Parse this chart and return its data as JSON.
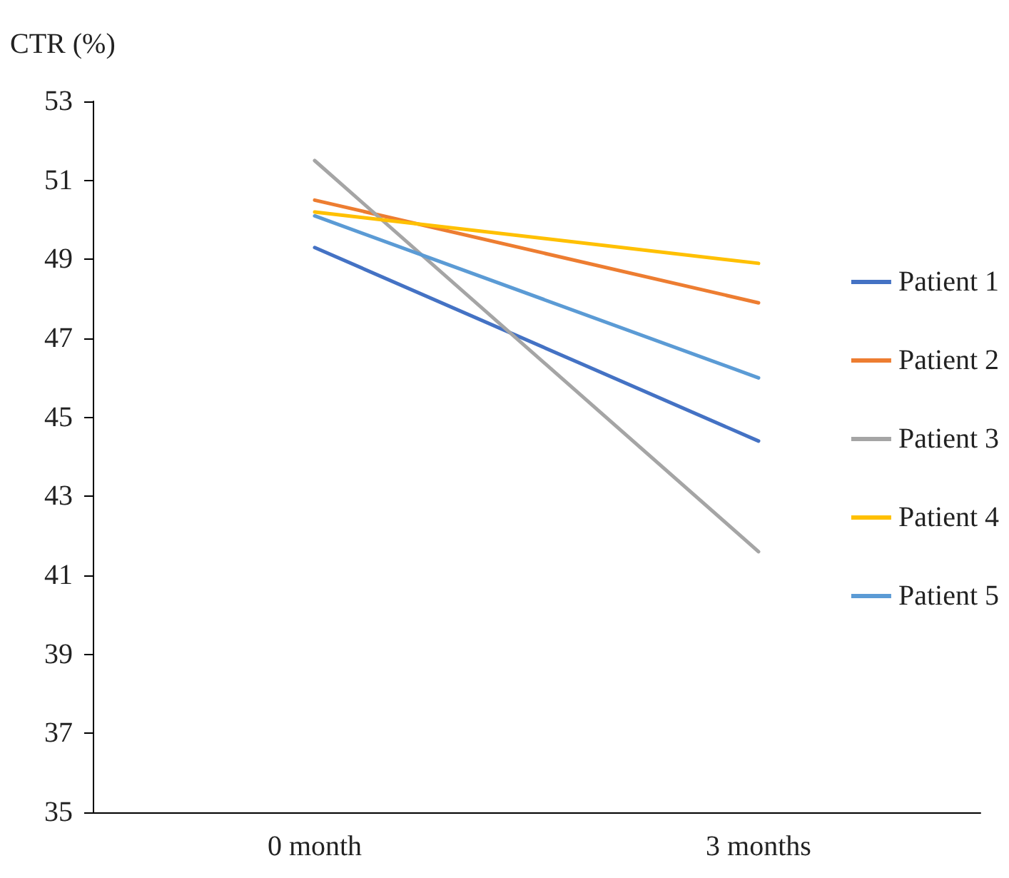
{
  "chart_data": {
    "type": "line",
    "ylabel": "CTR (%)",
    "categories": [
      "0 month",
      "3 months"
    ],
    "series": [
      {
        "name": "Patient 1",
        "color": "#4472c4",
        "values": [
          49.3,
          44.4
        ]
      },
      {
        "name": "Patient 2",
        "color": "#ed7d31",
        "values": [
          50.5,
          47.9
        ]
      },
      {
        "name": "Patient 3",
        "color": "#a5a5a5",
        "values": [
          51.5,
          41.6
        ]
      },
      {
        "name": "Patient 4",
        "color": "#ffc000",
        "values": [
          50.2,
          48.9
        ]
      },
      {
        "name": "Patient 5",
        "color": "#5b9bd5",
        "values": [
          50.1,
          46.0
        ]
      }
    ],
    "ylim": [
      35,
      53
    ],
    "yticks": [
      35,
      37,
      39,
      41,
      43,
      45,
      47,
      49,
      51,
      53
    ],
    "grid": false,
    "legend": "right",
    "marker": "none",
    "line_style": "solid"
  }
}
